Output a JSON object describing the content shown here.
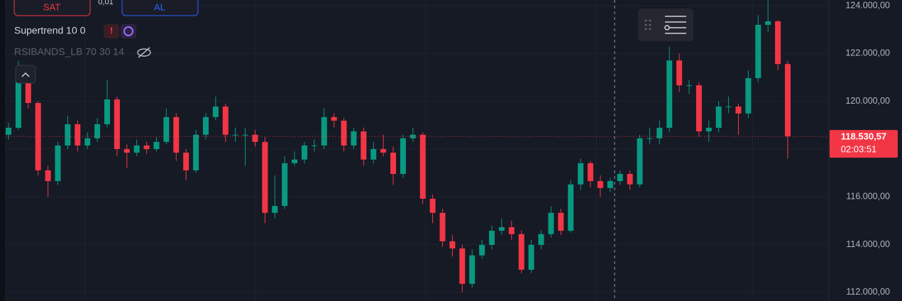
{
  "toolbar": {
    "sell": "SAT",
    "spread": "0,01",
    "buy": "AL"
  },
  "indicators": [
    {
      "label": "Supertrend 10 0"
    },
    {
      "label": "RSIBANDS_LB 70 30 14"
    }
  ],
  "chart_data": {
    "type": "candlestick",
    "up_color": "#089981",
    "down_color": "#f23645",
    "ylim": [
      111640,
      124240
    ],
    "yticks": [
      {
        "value": 112000,
        "label": "112.000,00"
      },
      {
        "value": 114000,
        "label": "114.000,00"
      },
      {
        "value": 116000,
        "label": "116.000,00"
      },
      {
        "value": 118000,
        "label": "118.000,00"
      },
      {
        "value": 120000,
        "label": "120.000,00"
      },
      {
        "value": 122000,
        "label": "122.000,00"
      },
      {
        "value": 124000,
        "label": "124.000,00"
      }
    ],
    "grid": true,
    "last_price_label": "118.530,57",
    "countdown": "02:03:51",
    "open": [
      118600,
      118890,
      121420,
      119930,
      117110,
      116660,
      118150,
      119040,
      118150,
      118450,
      119040,
      120080,
      118000,
      117850,
      118150,
      118000,
      118300,
      119340,
      117850,
      117110,
      118600,
      119340,
      119780,
      118600,
      118600,
      118600,
      118300,
      115330,
      115620,
      117410,
      117560,
      118150,
      118150,
      119340,
      119190,
      118150,
      118740,
      117560,
      118000,
      117850,
      116960,
      118450,
      118600,
      115920,
      115330,
      114140,
      113840,
      112360,
      113550,
      113990,
      114580,
      114730,
      114440,
      112950,
      113990,
      114440,
      115330,
      114580,
      116520,
      117410,
      116660,
      116370,
      116660,
      116960,
      116520,
      118450,
      118450,
      118890,
      121710,
      120670,
      120670,
      118740,
      118890,
      119780,
      119780,
      119490,
      120970,
      123200,
      123350,
      121560
    ],
    "high": [
      119100,
      121700,
      121500,
      120000,
      117300,
      118300,
      119400,
      119200,
      118700,
      119300,
      120900,
      120200,
      118200,
      118400,
      118300,
      118500,
      119700,
      119500,
      118000,
      118800,
      119500,
      120200,
      119900,
      118900,
      118900,
      118800,
      118500,
      116900,
      117700,
      117900,
      118300,
      118400,
      119700,
      119500,
      119300,
      118900,
      118900,
      118300,
      118600,
      118100,
      118600,
      118900,
      118700,
      116100,
      115500,
      114400,
      114000,
      113800,
      114200,
      114800,
      115100,
      115000,
      114600,
      114200,
      114600,
      115600,
      115500,
      116700,
      117600,
      117500,
      116900,
      116800,
      117100,
      117100,
      118600,
      118900,
      119200,
      122300,
      122000,
      120900,
      120800,
      119200,
      120000,
      120200,
      119900,
      121300,
      123600,
      124300,
      123400,
      121700
    ],
    "low": [
      118400,
      118800,
      119700,
      116900,
      116000,
      116500,
      118000,
      117900,
      118000,
      118300,
      118900,
      117700,
      117200,
      117700,
      117800,
      117900,
      118200,
      117500,
      116700,
      117000,
      118400,
      119200,
      118300,
      118300,
      117300,
      118100,
      114900,
      115100,
      115500,
      117300,
      117400,
      117900,
      118000,
      118900,
      117900,
      118000,
      117300,
      117400,
      117700,
      116500,
      116800,
      118300,
      115700,
      114900,
      113900,
      113500,
      112000,
      112200,
      113400,
      113800,
      114400,
      114200,
      112800,
      112800,
      113800,
      114300,
      114400,
      114500,
      116300,
      116400,
      116000,
      116200,
      116500,
      116300,
      116400,
      118200,
      118200,
      118700,
      120400,
      120300,
      118500,
      118300,
      118700,
      119500,
      118600,
      119300,
      120800,
      122900,
      121300,
      117600
    ],
    "close": [
      118890,
      121420,
      119930,
      117110,
      116660,
      118150,
      119040,
      118150,
      118450,
      119040,
      120080,
      118000,
      117850,
      118150,
      118000,
      118300,
      119340,
      117850,
      117110,
      118600,
      119340,
      119780,
      118600,
      118600,
      118600,
      118300,
      115330,
      115620,
      117410,
      117560,
      118150,
      118150,
      119340,
      119190,
      118150,
      118740,
      117560,
      118000,
      117850,
      116960,
      118450,
      118600,
      115920,
      115330,
      114140,
      113840,
      112360,
      113550,
      113990,
      114580,
      114730,
      114440,
      112950,
      113990,
      114440,
      115330,
      114580,
      116520,
      117410,
      116660,
      116370,
      116660,
      116960,
      116520,
      118450,
      118450,
      118890,
      121710,
      120670,
      120670,
      118740,
      118890,
      119780,
      119780,
      119490,
      120970,
      123200,
      123350,
      121560,
      118530.57
    ]
  }
}
